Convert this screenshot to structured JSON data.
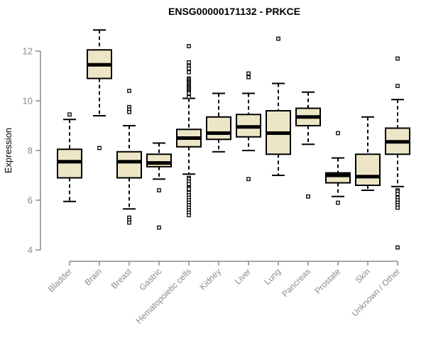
{
  "chart_data": {
    "type": "box",
    "title": "ENSG00000171132 - PRKCE",
    "ylabel": "Expression",
    "ylim": [
      4,
      13
    ],
    "yticks": [
      4,
      6,
      8,
      10,
      12
    ],
    "grid": false,
    "legend": "none",
    "categories": [
      "Bladder",
      "Brain",
      "Breast",
      "Gastric",
      "Hematopoietic cells",
      "Kidney",
      "Liver",
      "Lung",
      "Pancreas",
      "Prostate",
      "Skin",
      "Unknown / Other"
    ],
    "boxes": [
      {
        "category": "Bladder",
        "whisker_low": 5.95,
        "q1": 6.9,
        "median": 7.55,
        "q3": 8.05,
        "whisker_high": 9.25,
        "outliers": [
          9.45
        ]
      },
      {
        "category": "Brain",
        "whisker_low": 9.4,
        "q1": 10.9,
        "median": 11.45,
        "q3": 12.05,
        "whisker_high": 12.85,
        "outliers": [
          8.1
        ]
      },
      {
        "category": "Breast",
        "whisker_low": 5.65,
        "q1": 6.9,
        "median": 7.55,
        "q3": 7.95,
        "whisker_high": 9.0,
        "outliers": [
          10.4,
          9.75,
          9.65,
          9.55,
          5.3,
          5.2,
          5.1
        ]
      },
      {
        "category": "Gastric",
        "whisker_low": 6.85,
        "q1": 7.35,
        "median": 7.5,
        "q3": 7.85,
        "whisker_high": 8.3,
        "outliers": [
          6.4,
          4.9
        ]
      },
      {
        "category": "Hematopoietic cells",
        "whisker_low": 7.05,
        "q1": 8.15,
        "median": 8.5,
        "q3": 8.85,
        "whisker_high": 10.1,
        "outliers": [
          12.2,
          11.55,
          11.4,
          11.3,
          11.15,
          10.9,
          10.85,
          10.8,
          10.75,
          10.7,
          10.65,
          10.6,
          10.55,
          10.5,
          10.45,
          10.4,
          10.35,
          10.3,
          10.15,
          6.9,
          6.85,
          6.75,
          6.65,
          6.5,
          6.45,
          6.3,
          6.2,
          6.1,
          6.0,
          5.9,
          5.8,
          5.7,
          5.6,
          5.5,
          5.4
        ]
      },
      {
        "category": "Kidney",
        "whisker_low": 7.95,
        "q1": 8.45,
        "median": 8.7,
        "q3": 9.35,
        "whisker_high": 10.3,
        "outliers": []
      },
      {
        "category": "Liver",
        "whisker_low": 8.0,
        "q1": 8.55,
        "median": 8.95,
        "q3": 9.45,
        "whisker_high": 10.3,
        "outliers": [
          11.1,
          10.95,
          6.85
        ]
      },
      {
        "category": "Lung",
        "whisker_low": 7.0,
        "q1": 7.85,
        "median": 8.7,
        "q3": 9.6,
        "whisker_high": 10.7,
        "outliers": [
          12.5
        ]
      },
      {
        "category": "Pancreas",
        "whisker_low": 8.25,
        "q1": 9.0,
        "median": 9.35,
        "q3": 9.7,
        "whisker_high": 10.35,
        "outliers": [
          6.15
        ]
      },
      {
        "category": "Prostate",
        "whisker_low": 6.15,
        "q1": 6.7,
        "median": 7.0,
        "q3": 7.1,
        "whisker_high": 7.7,
        "outliers": [
          8.7,
          5.9
        ]
      },
      {
        "category": "Skin",
        "whisker_low": 6.4,
        "q1": 6.6,
        "median": 6.95,
        "q3": 7.85,
        "whisker_high": 9.35,
        "outliers": []
      },
      {
        "category": "Unknown / Other",
        "whisker_low": 6.55,
        "q1": 7.85,
        "median": 8.35,
        "q3": 8.9,
        "whisker_high": 10.05,
        "outliers": [
          11.7,
          10.6,
          6.4,
          6.35,
          6.25,
          6.1,
          6.0,
          5.9,
          5.8,
          5.7,
          4.1
        ]
      }
    ],
    "colors": {
      "box_fill": "#EDE6C6",
      "box_stroke": "#000000",
      "median": "#000000",
      "whisker": "#000000",
      "outlier_fill": "#FFFFFF",
      "outlier_stroke": "#000000",
      "axis": "#8A8A8A",
      "tick_label": "#8A8A8A",
      "title": "#000000",
      "background": "#FFFFFF"
    }
  }
}
